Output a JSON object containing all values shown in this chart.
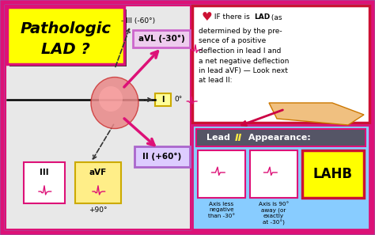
{
  "bg_color": "#29c8e8",
  "outer_border": "#dd1177",
  "left_panel_bg": "#e8e8e8",
  "title_bg": "#ffff00",
  "title_border": "#dd1177",
  "title_shadow": "#333333",
  "title_line1": "Pathologic",
  "title_line2": "LAD ?",
  "avl_box_bg": "#eeccee",
  "avl_box_border": "#cc66cc",
  "avl_text": "aVL (-30°)",
  "leadi_box_bg": "#ffff99",
  "leadi_box_border": "#ccaa00",
  "leadi_text": "I",
  "lead0_text": "0°",
  "leadii_box_bg": "#ddccff",
  "leadii_box_border": "#aa66cc",
  "leadii_text": "II (+60°)",
  "avf_box_bg": "#ffee88",
  "avf_box_border": "#ccaa00",
  "avf_text": "aVF",
  "avf_deg": "+90°",
  "iii_text": "III",
  "neg_iii_text": "- III (-60°)",
  "arrow_color": "#dd1177",
  "dash_color": "#333333",
  "ecg_color": "#dd1177",
  "right_top_bg": "#ffffff",
  "right_top_border": "#cc1133",
  "heart_color": "#cc1133",
  "right_text_line1": " IF there is ",
  "right_text_bold1": "LAD",
  "right_text_line1b": " (as",
  "right_text_body": "determined by the pre-\nsence of a  positive\ndeflection in lead I  and\na net  negative  deflection\nin lead aVF) —  Look next\nat  lead II:",
  "lead2_panel_bg": "#88ccff",
  "lead2_panel_border": "#dd1177",
  "lead2_title_bg": "#555566",
  "lead2_title_text1": "Lead ",
  "lead2_title_text2": "II",
  "lead2_title_text3": " Appearance:",
  "lead2_title_color1": "#ffffff",
  "lead2_title_color2": "#ffee44",
  "ecg_box_bg": "#ffffff",
  "ecg_box_border": "#dd1177",
  "lahb_bg": "#ffff00",
  "lahb_border": "#cc1133",
  "lahb_text": "LAHB",
  "caption1": "Axis less\nnegative\nthan -30°",
  "caption2": "Axis is 90°\naway (or\nexactly\nat -30°)"
}
